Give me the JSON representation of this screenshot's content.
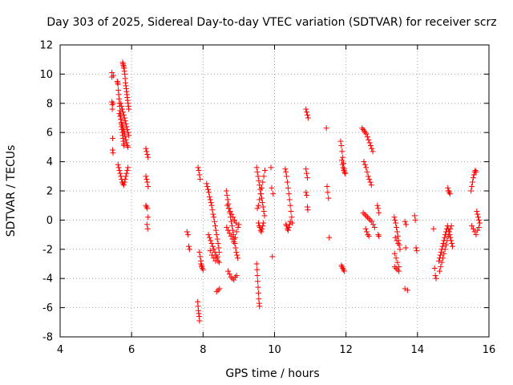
{
  "chart_data": {
    "type": "scatter",
    "title": "Day 303 of 2025, Sidereal Day-to-day VTEC variation (SDTVAR) for receiver scrz",
    "xlabel": "GPS time / hours",
    "ylabel": "SDTVAR / TECUs",
    "xlim": [
      4,
      16
    ],
    "ylim": [
      -8,
      12
    ],
    "xticks": [
      "4",
      "6",
      "8",
      "10",
      "12",
      "14",
      "16"
    ],
    "yticks": [
      "-8",
      "-6",
      "-4",
      "-2",
      "0",
      "2",
      "4",
      "6",
      "8",
      "10",
      "12"
    ],
    "grid": true,
    "marker": "plus",
    "color": "#ff0000",
    "series": [
      {
        "name": "SDTVAR",
        "x": [
          5.45,
          5.45,
          5.45,
          5.46,
          5.46,
          5.47,
          5.47,
          5.48,
          5.48,
          5.49,
          5.6,
          5.61,
          5.62,
          5.63,
          5.64,
          5.65,
          5.66,
          5.67,
          5.68,
          5.69,
          5.7,
          5.71,
          5.72,
          5.73,
          5.74,
          5.75,
          5.76,
          5.77,
          5.78,
          5.79,
          5.62,
          5.64,
          5.66,
          5.68,
          5.7,
          5.72,
          5.74,
          5.76,
          5.78,
          5.8,
          5.82,
          5.84,
          5.86,
          5.88,
          5.9,
          5.75,
          5.76,
          5.77,
          5.78,
          5.79,
          5.8,
          5.81,
          5.82,
          5.83,
          5.84,
          5.85,
          5.86,
          5.87,
          5.88,
          5.89,
          5.9,
          5.91,
          5.92,
          5.7,
          5.72,
          5.74,
          5.76,
          5.78,
          5.8,
          5.82,
          5.84,
          5.86,
          5.88,
          5.9,
          5.92,
          5.66,
          5.68,
          5.7,
          5.72,
          5.74,
          5.76,
          5.78,
          5.8,
          5.82,
          5.84,
          5.86,
          5.88,
          5.9,
          6.4,
          6.42,
          6.44,
          6.46,
          6.4,
          6.42,
          6.44,
          6.46,
          6.4,
          6.42,
          6.44,
          6.46,
          6.43,
          6.45,
          7.55,
          7.58,
          7.6,
          7.62,
          7.85,
          7.86,
          7.87,
          7.88,
          7.89,
          7.9,
          7.86,
          7.88,
          7.9,
          7.92,
          7.94,
          7.96,
          7.98,
          8.0,
          7.9,
          7.92,
          7.94,
          7.96,
          8.1,
          8.12,
          8.14,
          8.16,
          8.18,
          8.2,
          8.22,
          8.24,
          8.26,
          8.28,
          8.3,
          8.32,
          8.34,
          8.36,
          8.38,
          8.4,
          8.42,
          8.44,
          8.15,
          8.18,
          8.21,
          8.24,
          8.27,
          8.3,
          8.33,
          8.36,
          8.39,
          8.42,
          8.45,
          8.2,
          8.25,
          8.3,
          8.35,
          8.4,
          8.45,
          8.38,
          8.42,
          8.46,
          8.65,
          8.67,
          8.69,
          8.71,
          8.73,
          8.75,
          8.77,
          8.79,
          8.81,
          8.83,
          8.85,
          8.87,
          8.89,
          8.91,
          8.93,
          8.95,
          8.97,
          8.66,
          8.7,
          8.74,
          8.78,
          8.82,
          8.86,
          8.9,
          8.94,
          8.98,
          9.0,
          8.7,
          8.74,
          8.78,
          8.82,
          8.86,
          8.9,
          8.94,
          8.68,
          8.72,
          8.76,
          8.8,
          8.84,
          8.88,
          8.92,
          9.5,
          9.52,
          9.54,
          9.56,
          9.58,
          9.6,
          9.62,
          9.64,
          9.66,
          9.68,
          9.7,
          9.72,
          9.55,
          9.57,
          9.59,
          9.61,
          9.63,
          9.65,
          9.67,
          9.69,
          9.52,
          9.55,
          9.58,
          9.61,
          9.64,
          9.67,
          9.7,
          9.73,
          9.5,
          9.51,
          9.52,
          9.53,
          9.54,
          9.55,
          9.56,
          9.57,
          9.58,
          9.9,
          9.92,
          9.94,
          9.96,
          10.3,
          10.32,
          10.34,
          10.36,
          10.38,
          10.4,
          10.42,
          10.44,
          10.46,
          10.48,
          10.5,
          10.32,
          10.34,
          10.36,
          10.38,
          10.4,
          10.42,
          10.44,
          10.88,
          10.9,
          10.92,
          10.94,
          10.88,
          10.9,
          10.92,
          10.88,
          10.9,
          10.92,
          10.93,
          11.45,
          11.47,
          11.49,
          11.51,
          11.53,
          11.85,
          11.87,
          11.89,
          11.91,
          11.93,
          11.95,
          11.97,
          11.87,
          11.89,
          11.91,
          11.93,
          11.95,
          11.88,
          11.9,
          11.92,
          11.94,
          11.96,
          11.98,
          12.45,
          12.48,
          12.51,
          12.54,
          12.57,
          12.6,
          12.63,
          12.66,
          12.69,
          12.72,
          12.75,
          12.5,
          12.53,
          12.56,
          12.59,
          12.62,
          12.65,
          12.68,
          12.71,
          12.48,
          12.52,
          12.56,
          12.6,
          12.64,
          12.68,
          12.72,
          12.76,
          12.8,
          12.55,
          12.58,
          12.61,
          12.64,
          12.88,
          12.9,
          12.92,
          12.9,
          12.92,
          13.35,
          13.37,
          13.39,
          13.41,
          13.43,
          13.45,
          13.47,
          13.49,
          13.51,
          13.36,
          13.4,
          13.44,
          13.48,
          13.36,
          13.4,
          13.44,
          13.48,
          13.38,
          13.42,
          13.46,
          13.65,
          13.68,
          13.72,
          13.65,
          13.67,
          13.92,
          13.94,
          13.96,
          13.98,
          14.45,
          14.48,
          14.5,
          14.52,
          14.6,
          14.62,
          14.64,
          14.66,
          14.68,
          14.7,
          14.72,
          14.74,
          14.76,
          14.78,
          14.8,
          14.82,
          14.84,
          14.86,
          14.88,
          14.9,
          14.92,
          14.94,
          14.96,
          14.98,
          14.62,
          14.65,
          14.68,
          14.71,
          14.74,
          14.77,
          14.8,
          14.83,
          14.86,
          14.89,
          14.92,
          14.95,
          14.85,
          14.87,
          14.89,
          14.91,
          15.5,
          15.52,
          15.54,
          15.56,
          15.58,
          15.6,
          15.62,
          15.64,
          15.66,
          15.68,
          15.7,
          15.72,
          15.74,
          15.52,
          15.56,
          15.6,
          15.64,
          15.68,
          15.72
        ],
        "y": [
          10.1,
          9.8,
          8.1,
          7.9,
          7.6,
          5.6,
          4.8,
          4.6,
          8.0,
          9.9,
          9.5,
          9.4,
          9.3,
          8.9,
          8.6,
          8.3,
          8.0,
          7.8,
          7.5,
          7.2,
          6.9,
          6.6,
          6.4,
          6.2,
          6.0,
          5.8,
          5.6,
          5.4,
          5.2,
          5.1,
          3.8,
          3.6,
          3.4,
          3.2,
          3.0,
          2.8,
          2.6,
          2.5,
          2.4,
          2.6,
          2.8,
          3.0,
          3.2,
          3.4,
          3.6,
          10.8,
          10.7,
          10.6,
          10.5,
          10.4,
          10.2,
          10.0,
          9.7,
          9.4,
          9.2,
          9.0,
          8.8,
          8.6,
          8.4,
          8.2,
          8.0,
          7.8,
          7.6,
          8.0,
          7.8,
          7.6,
          7.4,
          7.2,
          7.0,
          6.8,
          6.6,
          6.4,
          6.2,
          6.0,
          5.8,
          7.3,
          7.1,
          6.9,
          6.7,
          6.5,
          6.3,
          6.1,
          5.9,
          5.7,
          5.5,
          5.3,
          5.1,
          5.0,
          4.9,
          4.7,
          4.5,
          4.3,
          3.0,
          2.8,
          2.6,
          2.3,
          1.0,
          0.9,
          0.8,
          0.2,
          -0.3,
          -0.6,
          -0.8,
          -1.0,
          -1.8,
          -2.0,
          -5.6,
          -5.9,
          -6.2,
          -6.4,
          -6.6,
          -6.9,
          3.6,
          3.4,
          3.1,
          2.8,
          -3.0,
          -3.2,
          -3.3,
          -3.4,
          -2.2,
          -2.5,
          -2.8,
          -3.1,
          2.5,
          2.3,
          2.1,
          1.9,
          1.6,
          1.4,
          1.2,
          1.0,
          0.7,
          0.4,
          0.2,
          -0.1,
          -0.4,
          -0.7,
          -1.0,
          -1.3,
          -1.6,
          -1.9,
          -1.0,
          -1.2,
          -1.4,
          -1.6,
          -1.8,
          -2.0,
          -2.2,
          -2.4,
          -2.6,
          -2.8,
          -2.9,
          -2.1,
          -2.4,
          -2.6,
          -2.8,
          -2.5,
          -2.2,
          -4.9,
          -4.8,
          -4.7,
          2.0,
          1.7,
          1.4,
          1.1,
          0.8,
          0.5,
          0.2,
          -0.1,
          -0.4,
          -0.7,
          -1.0,
          -1.3,
          -1.6,
          -1.9,
          -2.2,
          -2.4,
          -2.6,
          -0.5,
          -0.7,
          -0.9,
          -1.1,
          -1.3,
          -1.5,
          -1.2,
          -0.8,
          -0.5,
          -0.3,
          -3.5,
          -3.7,
          -3.9,
          -4.0,
          -4.1,
          -3.9,
          -3.8,
          1.0,
          0.8,
          0.6,
          0.4,
          0.2,
          0.0,
          -0.2,
          3.6,
          3.3,
          3.0,
          2.7,
          2.4,
          2.1,
          1.8,
          1.5,
          1.2,
          0.9,
          0.6,
          0.3,
          -0.2,
          -0.4,
          -0.5,
          -0.7,
          -0.8,
          -0.6,
          -0.4,
          -0.2,
          0.8,
          1.0,
          1.4,
          1.8,
          2.2,
          2.6,
          3.0,
          3.4,
          -3.0,
          -3.4,
          -3.8,
          -4.2,
          -4.6,
          -5.0,
          -5.4,
          -5.7,
          -5.9,
          3.6,
          2.2,
          -2.5,
          1.8,
          3.5,
          3.3,
          3.0,
          2.6,
          2.2,
          1.8,
          1.4,
          1.0,
          0.6,
          0.2,
          -0.2,
          -0.3,
          -0.4,
          -0.6,
          -0.7,
          -0.5,
          -0.3,
          -0.1,
          7.6,
          7.4,
          7.2,
          7.0,
          3.5,
          3.2,
          2.9,
          1.9,
          1.7,
          0.9,
          0.7,
          6.3,
          2.3,
          1.9,
          1.5,
          -1.2,
          5.4,
          5.1,
          4.7,
          4.3,
          3.9,
          3.5,
          3.2,
          -3.1,
          -3.2,
          -3.3,
          -3.4,
          -3.5,
          4.1,
          3.8,
          3.6,
          3.4,
          3.3,
          3.2,
          6.3,
          6.2,
          6.1,
          6.0,
          5.9,
          5.7,
          5.5,
          5.3,
          5.1,
          4.9,
          4.7,
          4.0,
          3.8,
          3.6,
          3.3,
          3.0,
          2.8,
          2.6,
          2.4,
          0.5,
          0.4,
          0.3,
          0.2,
          0.1,
          0.0,
          -0.1,
          -0.3,
          -0.5,
          -0.6,
          -0.8,
          -1.0,
          -1.1,
          1.0,
          0.8,
          0.5,
          -1.0,
          -1.1,
          0.2,
          0.0,
          -0.2,
          -0.5,
          -0.8,
          -1.1,
          -1.4,
          -1.7,
          -2.0,
          -2.3,
          -2.6,
          -2.9,
          -3.2,
          -3.2,
          -3.3,
          -3.4,
          -3.5,
          -1.2,
          -1.4,
          -1.6,
          -0.1,
          -0.3,
          -4.8,
          -4.7,
          -1.9,
          0.3,
          0.0,
          -1.9,
          -2.1,
          -0.6,
          -3.3,
          -3.8,
          -4.0,
          -2.8,
          -2.6,
          -2.4,
          -2.2,
          -2.0,
          -1.8,
          -1.6,
          -1.4,
          -1.2,
          -1.0,
          -0.8,
          -0.6,
          -0.4,
          -0.6,
          -0.8,
          -1.0,
          -1.2,
          -1.4,
          -1.6,
          -1.8,
          -3.5,
          -3.2,
          -2.9,
          -2.6,
          -2.3,
          -2.0,
          -1.7,
          -1.4,
          -1.1,
          -0.8,
          -0.6,
          -0.4,
          2.2,
          2.0,
          1.9,
          1.8,
          2.0,
          2.3,
          2.6,
          2.9,
          3.1,
          3.3,
          3.4,
          3.3,
          0.6,
          0.4,
          0.2,
          0.0,
          -0.2,
          -0.4,
          -0.6,
          -0.8,
          -1.0,
          -0.7,
          -0.5
        ]
      }
    ]
  }
}
